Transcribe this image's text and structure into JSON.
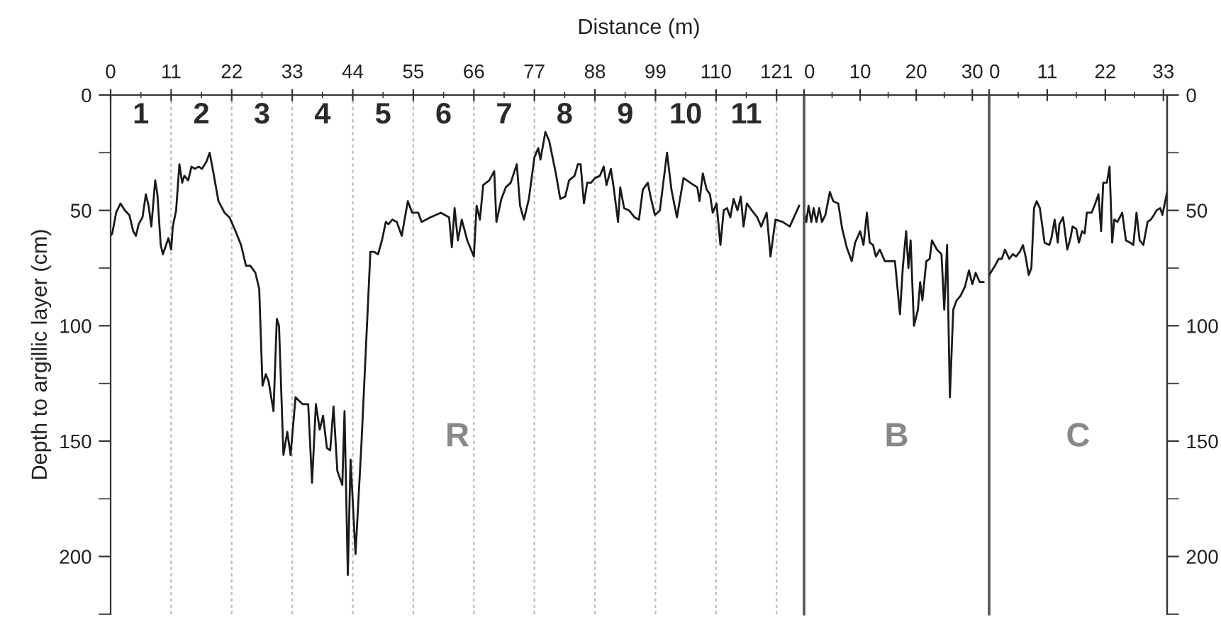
{
  "chart_data": [
    {
      "type": "line",
      "title": "R",
      "xlabel": "Distance (m)",
      "ylabel": "Depth to argillic layer (cm)",
      "xlim": [
        0,
        126
      ],
      "xticks": [
        0,
        11,
        22,
        33,
        44,
        55,
        66,
        77,
        88,
        99,
        110,
        121
      ],
      "ylim": [
        225,
        0
      ],
      "yticks": [
        0,
        50,
        100,
        150,
        200
      ],
      "grid": "x",
      "tick_labels": "xy",
      "series": [
        {
          "color": "#1a1a1a",
          "x": [
            0,
            0.3,
            1.0,
            1.8,
            2.6,
            3.4,
            4.1,
            4.6,
            5.1,
            5.8,
            6.4,
            6.9,
            7.4,
            8.1,
            8.5,
            9.1,
            9.5,
            10.5,
            11.0,
            11.3,
            11.9,
            12.5,
            13.0,
            13.4,
            14.1,
            14.7,
            15.3,
            16.0,
            16.6,
            17.4,
            18.0,
            18.7,
            19.6,
            20.7,
            21.6,
            22.7,
            23.7,
            24.6,
            25.4,
            26.3,
            27.0,
            27.6,
            28.2,
            28.7,
            29.6,
            30.2,
            30.6,
            31.4,
            32.1,
            32.7,
            33.6,
            34.9,
            35.9,
            36.6,
            37.3,
            38.0,
            38.6,
            39.3,
            39.9,
            40.5,
            41.2,
            42.1,
            42.5,
            43.1,
            43.6,
            44.5,
            45.6,
            47.2,
            47.9,
            48.6,
            49.3,
            50.0,
            50.5,
            51.2,
            52.0,
            52.9,
            54.0,
            54.8,
            55.9,
            56.5,
            58.1,
            60.0,
            61.5,
            62.0,
            62.5,
            63.1,
            63.8,
            64.8,
            66.0,
            66.5,
            67.1,
            67.7,
            68.8,
            69.7,
            70.1,
            71.0,
            71.8,
            72.7,
            73.8,
            74.4,
            75.1,
            76.0,
            77.0,
            77.7,
            78.1,
            79.0,
            79.7,
            80.9,
            81.7,
            82.6,
            83.3,
            84.3,
            84.9,
            85.4,
            86.0,
            86.6,
            87.3,
            88.0,
            88.9,
            89.6,
            90.1,
            90.9,
            91.4,
            92.2,
            92.6,
            93.3,
            94.2,
            95.2,
            96.0,
            96.7,
            97.6,
            98.2,
            98.9,
            99.8,
            101.1,
            101.9,
            102.9,
            104.1,
            105.3,
            106.6,
            107.0,
            107.6,
            108.3,
            108.9,
            109.4,
            110.1,
            110.8,
            111.4,
            112.0,
            112.6,
            113.2,
            113.9,
            114.5,
            115.0,
            115.6,
            116.5,
            117.5,
            118.2,
            119.2,
            119.9,
            120.8,
            122.1,
            123.4,
            125.1
          ],
          "values": [
            61,
            60,
            51,
            47,
            50,
            52,
            59,
            61,
            56,
            53,
            43,
            48,
            57,
            37,
            43,
            65,
            69,
            62,
            67,
            57,
            50,
            30,
            38,
            35,
            37,
            31,
            32,
            31,
            32,
            29,
            25,
            34,
            46,
            51,
            53,
            59,
            65,
            74,
            74,
            77,
            84,
            126,
            121,
            124,
            137,
            97,
            100,
            156,
            146,
            156,
            131,
            134,
            134,
            168,
            134,
            145,
            139,
            153,
            154,
            135,
            163,
            169,
            137,
            208,
            158,
            199,
            150,
            68,
            68,
            69,
            63,
            55,
            56,
            54,
            55,
            61,
            46,
            51,
            51,
            55,
            53,
            51,
            53,
            66,
            49,
            63,
            54,
            63,
            70,
            48,
            54,
            39,
            37,
            33,
            55,
            45,
            40,
            38,
            30,
            48,
            54,
            45,
            27,
            23,
            28,
            16,
            20,
            34,
            45,
            44,
            37,
            35,
            30,
            30,
            47,
            38,
            38,
            36,
            35,
            31,
            39,
            32,
            40,
            55,
            40,
            49,
            50,
            53,
            54,
            41,
            38,
            45,
            52,
            50,
            25,
            41,
            53,
            36,
            38,
            40,
            46,
            34,
            41,
            43,
            51,
            47,
            65,
            50,
            49,
            53,
            45,
            50,
            44,
            57,
            47,
            50,
            53,
            57,
            51,
            70,
            54,
            55,
            57,
            48
          ]
        }
      ],
      "annotations": [
        "1",
        "2",
        "3",
        "4",
        "5",
        "6",
        "7",
        "8",
        "9",
        "10",
        "11"
      ]
    },
    {
      "type": "line",
      "title": "B",
      "xlim": [
        0,
        33
      ],
      "xticks": [
        0,
        10,
        20,
        30
      ],
      "ylim": [
        225,
        0
      ],
      "tick_labels": "x",
      "series": [
        {
          "color": "#1a1a1a",
          "x": [
            0,
            0.4,
            0.8,
            1.3,
            1.7,
            2.2,
            2.7,
            3.2,
            3.8,
            4.6,
            5.2,
            6.1,
            6.8,
            7.6,
            8.5,
            9.1,
            10.0,
            10.6,
            11.2,
            11.7,
            12.3,
            12.8,
            13.5,
            14.4,
            16.2,
            17.1,
            17.6,
            18.2,
            18.6,
            19.0,
            19.6,
            20.3,
            20.7,
            21.1,
            21.8,
            22.4,
            22.8,
            23.7,
            24.5,
            25.0,
            25.5,
            26.0,
            26.6,
            27.2,
            27.9,
            28.7,
            29.4,
            30.0,
            30.6,
            31.3,
            32.0
          ],
          "values": [
            51,
            55,
            48,
            55,
            49,
            55,
            49,
            55,
            52,
            42,
            46,
            47,
            58,
            66,
            72,
            64,
            59,
            65,
            51,
            64,
            65,
            70,
            67,
            72,
            72,
            95,
            75,
            59,
            75,
            63,
            100,
            93,
            81,
            89,
            72,
            71,
            63,
            67,
            69,
            93,
            65,
            131,
            93,
            89,
            87,
            83,
            76,
            82,
            77,
            81,
            81
          ]
        }
      ]
    },
    {
      "type": "line",
      "title": "C",
      "xlim": [
        0,
        33.7
      ],
      "xticks": [
        0,
        11,
        22,
        33
      ],
      "y2lim": [
        225,
        0
      ],
      "y2ticks": [
        0,
        50,
        100,
        150,
        200
      ],
      "series": [
        {
          "color": "#1a1a1a",
          "axis": "y2",
          "x": [
            0,
            1.1,
            1.8,
            2.4,
            3.0,
            3.8,
            4.5,
            5.1,
            5.8,
            6.4,
            6.9,
            7.5,
            8.0,
            8.5,
            9.0,
            9.6,
            10.5,
            11.4,
            11.8,
            12.4,
            13.0,
            13.3,
            14.0,
            14.8,
            15.4,
            15.8,
            16.5,
            17.0,
            17.6,
            18.1,
            18.5,
            19.4,
            20.1,
            20.7,
            21.2,
            21.6,
            22.3,
            22.8,
            23.3,
            23.7,
            24.3,
            25.2,
            25.9,
            26.7,
            27.3,
            27.9,
            28.5,
            29.2,
            30.0,
            30.6,
            31.2,
            31.7,
            32.4,
            32.8,
            33.7
          ],
          "values": [
            78,
            74,
            71,
            71,
            67,
            71,
            69,
            70,
            68,
            65,
            70,
            78,
            75,
            49,
            46,
            49,
            64,
            65,
            62,
            54,
            64,
            56,
            53,
            67,
            62,
            57,
            58,
            64,
            59,
            60,
            51,
            51,
            47,
            43,
            59,
            38,
            38,
            31,
            64,
            54,
            55,
            51,
            63,
            64,
            65,
            51,
            63,
            65,
            55,
            54,
            52,
            50,
            49,
            52,
            42
          ]
        }
      ]
    }
  ]
}
